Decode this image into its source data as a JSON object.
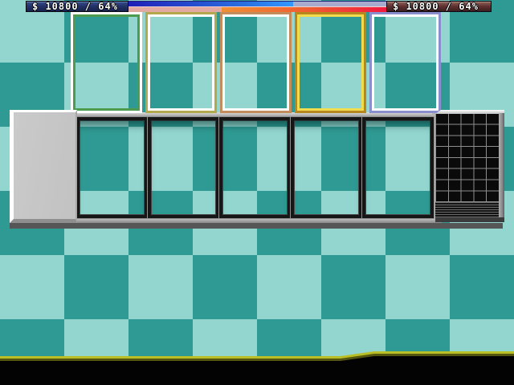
{
  "hud": {
    "left_score_text": "$ 10800 / 64%",
    "right_score_text": "$ 10800 / 64%",
    "duel_bar": {
      "left_fill_percent": 64,
      "right_fill_percent": 64
    }
  },
  "board": {
    "card_frames": [
      {
        "name": "green",
        "edge": "#ffffff",
        "line": "#4e9a4e"
      },
      {
        "name": "khaki",
        "edge": "#b4a84e",
        "line": "#ffffff"
      },
      {
        "name": "tan",
        "edge": "#c28c5c",
        "line": "#ffffff"
      },
      {
        "name": "gold",
        "edge": "#b5871e",
        "line": "#f2dc4e"
      },
      {
        "name": "periwinkle",
        "edge": "#8a8ecc",
        "line": "#ffffff"
      }
    ],
    "slot_count": 5,
    "deck_grid": {
      "cols": 5,
      "rows": 8
    }
  },
  "palette": {
    "checker_dark": "#2f9a93",
    "checker_light": "#93d6cf",
    "left_label_bg": "#25336b",
    "right_label_bg": "#5e3030",
    "blue_fill_start": "#2020b8",
    "blue_fill_end": "#3399ff",
    "blue_empty": "#a9abce",
    "red_fill_start": "#ef9036",
    "red_fill_end": "#f21840",
    "red_empty": "#e2a9a2",
    "floor_line": "#b9bf25",
    "floor_line_shadow": "#55560f"
  }
}
